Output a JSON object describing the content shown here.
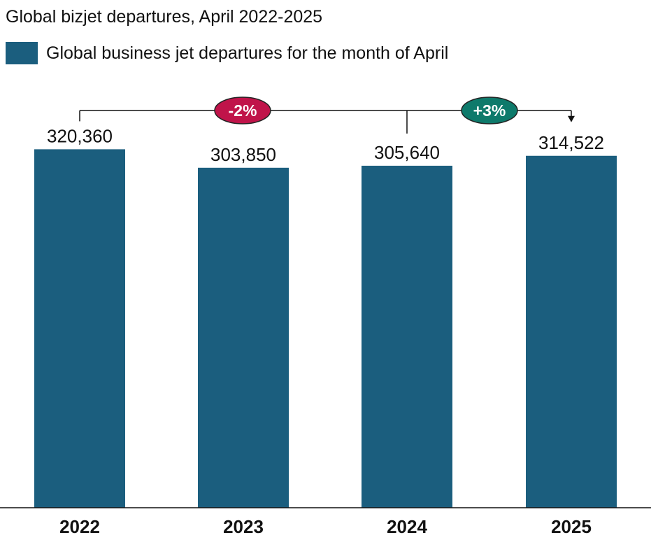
{
  "colors": {
    "bar": "#1b5e7e",
    "decrease_badge": "#c0144a",
    "increase_badge": "#0e7a6b",
    "bracket": "#111111",
    "text": "#111111"
  },
  "chart_data": {
    "type": "bar",
    "title": "Global bizjet departures, April 2022-2025",
    "categories": [
      "2022",
      "2023",
      "2024",
      "2025"
    ],
    "series": [
      {
        "name": "Global business jet departures for the month of April",
        "values": [
          320360,
          303850,
          305640,
          314522
        ],
        "labels": [
          "320,360",
          "303,850",
          "305,640",
          "314,522"
        ]
      }
    ],
    "ylim": [
      0,
      360000
    ],
    "grid": false,
    "legend": "top-left",
    "annotations": [
      {
        "from": "2022",
        "to": "2024",
        "text": "-2%",
        "kind": "decrease"
      },
      {
        "from": "2024",
        "to": "2025",
        "text": "+3%",
        "kind": "increase"
      }
    ]
  }
}
